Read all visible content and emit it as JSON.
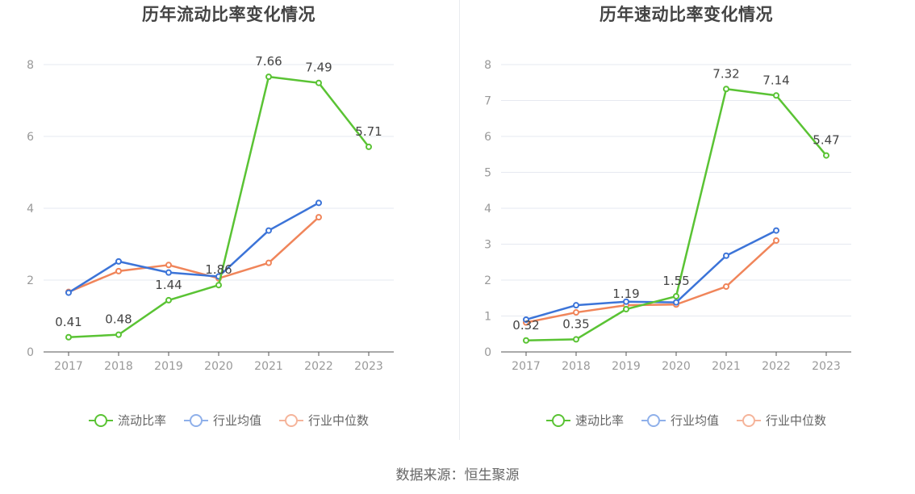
{
  "source_text": "数据来源：恒生聚源",
  "chart_data": [
    {
      "type": "line",
      "title": "历年流动比率变化情况",
      "x": [
        "2017",
        "2018",
        "2019",
        "2020",
        "2021",
        "2022",
        "2023"
      ],
      "ylim": [
        0,
        8
      ],
      "yticks": [
        0,
        2,
        4,
        6,
        8
      ],
      "grid": true,
      "legend_position": "bottom",
      "series": [
        {
          "name": "流动比率",
          "color": "#5ac334",
          "values": [
            0.41,
            0.48,
            1.44,
            1.86,
            7.66,
            7.49,
            5.71
          ],
          "labels": [
            "0.41",
            "0.48",
            "1.44",
            "1.86",
            "7.66",
            "7.49",
            "5.71"
          ]
        },
        {
          "name": "行业均值",
          "color": "#3c74d8",
          "values": [
            1.65,
            2.52,
            2.21,
            2.1,
            3.38,
            4.15,
            null
          ]
        },
        {
          "name": "行业中位数",
          "color": "#f0855a",
          "values": [
            1.67,
            2.25,
            2.42,
            2.05,
            2.48,
            3.75,
            null
          ]
        }
      ]
    },
    {
      "type": "line",
      "title": "历年速动比率变化情况",
      "x": [
        "2017",
        "2018",
        "2019",
        "2020",
        "2021",
        "2022",
        "2023"
      ],
      "ylim": [
        0,
        8
      ],
      "yticks": [
        0,
        1,
        2,
        3,
        4,
        5,
        6,
        7,
        8
      ],
      "grid": true,
      "legend_position": "bottom",
      "series": [
        {
          "name": "速动比率",
          "color": "#5ac334",
          "values": [
            0.32,
            0.35,
            1.19,
            1.55,
            7.32,
            7.14,
            5.47
          ],
          "labels": [
            "0.32",
            "0.35",
            "1.19",
            "1.55",
            "7.32",
            "7.14",
            "5.47"
          ]
        },
        {
          "name": "行业均值",
          "color": "#3c74d8",
          "values": [
            0.9,
            1.3,
            1.4,
            1.38,
            2.68,
            3.38,
            null
          ]
        },
        {
          "name": "行业中位数",
          "color": "#f0855a",
          "values": [
            0.82,
            1.1,
            1.3,
            1.32,
            1.82,
            3.1,
            null
          ]
        }
      ]
    }
  ]
}
